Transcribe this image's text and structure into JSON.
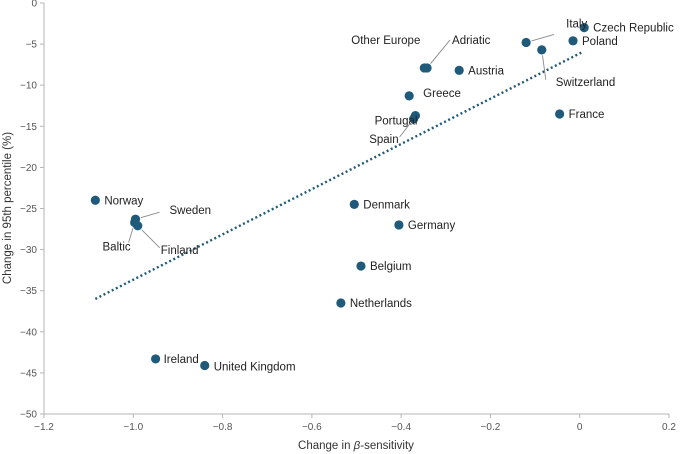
{
  "chart_data": {
    "type": "scatter",
    "xlabel_prefix": "Change in ",
    "xlabel_symbol": "β",
    "xlabel_suffix": "-sensitivity",
    "ylabel": "Change in 95th percentile (%)",
    "xlim": [
      -1.2,
      0.2
    ],
    "ylim": [
      -50,
      0
    ],
    "xticks": [
      -1.2,
      -1.0,
      -0.8,
      -0.6,
      -0.4,
      -0.2,
      0,
      0.2
    ],
    "xtick_labels": [
      "−1.2",
      "−1.0",
      "−0.8",
      "−0.6",
      "−0.4",
      "−0.2",
      "0",
      "0.2"
    ],
    "yticks": [
      0,
      -5,
      -10,
      -15,
      -20,
      -25,
      -30,
      -35,
      -40,
      -45,
      -50
    ],
    "ytick_labels": [
      "0",
      "−5",
      "−10",
      "−15",
      "−20",
      "−25",
      "−30",
      "−35",
      "−40",
      "−45",
      "−50"
    ],
    "point_color": "#1f5a7a",
    "trend_color": "#1f5a7a",
    "trendline": {
      "x": [
        -1.085,
        0.005
      ],
      "y": [
        -36.0,
        -6.0
      ]
    },
    "points": [
      {
        "name": "Czech Republic",
        "x": 0.01,
        "y": -3.0
      },
      {
        "name": "Poland",
        "x": -0.015,
        "y": -4.6
      },
      {
        "name": "Italy",
        "x": -0.12,
        "y": -4.8
      },
      {
        "name": "Switzerland",
        "x": -0.085,
        "y": -5.7
      },
      {
        "name": "Adriatic",
        "x": -0.342,
        "y": -7.9
      },
      {
        "name": "Other Europe",
        "x": -0.348,
        "y": -7.9
      },
      {
        "name": "Austria",
        "x": -0.27,
        "y": -8.2
      },
      {
        "name": "Greece",
        "x": -0.382,
        "y": -11.3
      },
      {
        "name": "Portugal",
        "x": -0.368,
        "y": -13.7
      },
      {
        "name": "Spain",
        "x": -0.372,
        "y": -14.1
      },
      {
        "name": "France",
        "x": -0.045,
        "y": -13.5
      },
      {
        "name": "Norway",
        "x": -1.085,
        "y": -24.0
      },
      {
        "name": "Sweden",
        "x": -0.995,
        "y": -26.3
      },
      {
        "name": "Baltic",
        "x": -0.997,
        "y": -26.7
      },
      {
        "name": "Finland",
        "x": -0.99,
        "y": -27.1
      },
      {
        "name": "Denmark",
        "x": -0.505,
        "y": -24.5
      },
      {
        "name": "Germany",
        "x": -0.405,
        "y": -27.0
      },
      {
        "name": "Belgium",
        "x": -0.49,
        "y": -32.0
      },
      {
        "name": "Netherlands",
        "x": -0.535,
        "y": -36.5
      },
      {
        "name": "Ireland",
        "x": -0.95,
        "y": -43.3
      },
      {
        "name": "United Kingdom",
        "x": -0.84,
        "y": -44.1
      }
    ]
  }
}
